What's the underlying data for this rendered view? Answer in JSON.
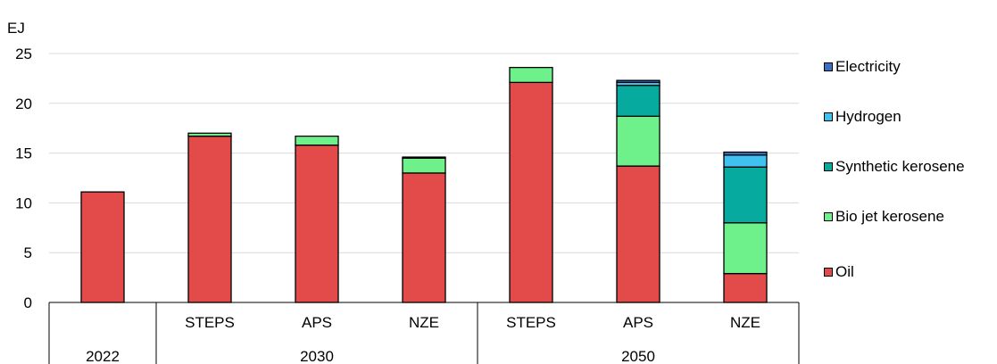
{
  "chart_data": {
    "type": "bar",
    "stacked": true,
    "unit_label": "EJ",
    "ylim": [
      0,
      25
    ],
    "yticks": [
      0,
      5,
      10,
      15,
      20,
      25
    ],
    "grid": true,
    "legend_position": "right",
    "categories": [
      {
        "label": "",
        "group": "2022"
      },
      {
        "label": "STEPS",
        "group": "2030"
      },
      {
        "label": "APS",
        "group": "2030"
      },
      {
        "label": "NZE",
        "group": "2030"
      },
      {
        "label": "STEPS",
        "group": "2050"
      },
      {
        "label": "APS",
        "group": "2050"
      },
      {
        "label": "NZE",
        "group": "2050"
      }
    ],
    "groups": [
      {
        "label": "2022",
        "span": 1
      },
      {
        "label": "2030",
        "span": 3
      },
      {
        "label": "2050",
        "span": 3
      }
    ],
    "series": [
      {
        "name": "Oil",
        "color": "#e34a4a",
        "values": [
          11.1,
          16.7,
          15.8,
          13.0,
          22.1,
          13.7,
          2.9
        ]
      },
      {
        "name": "Bio jet kerosene",
        "color": "#6ef08a",
        "values": [
          0.0,
          0.3,
          0.9,
          1.5,
          1.5,
          5.0,
          5.1
        ]
      },
      {
        "name": "Synthetic kerosene",
        "color": "#06aa9e",
        "values": [
          0.0,
          0.0,
          0.0,
          0.1,
          0.0,
          3.1,
          5.6
        ]
      },
      {
        "name": "Hydrogen",
        "color": "#3fc2f0",
        "values": [
          0.0,
          0.0,
          0.0,
          0.0,
          0.0,
          0.3,
          1.2
        ]
      },
      {
        "name": "Electricity",
        "color": "#3a6fc4",
        "values": [
          0.0,
          0.0,
          0.0,
          0.0,
          0.0,
          0.2,
          0.3
        ]
      }
    ]
  }
}
